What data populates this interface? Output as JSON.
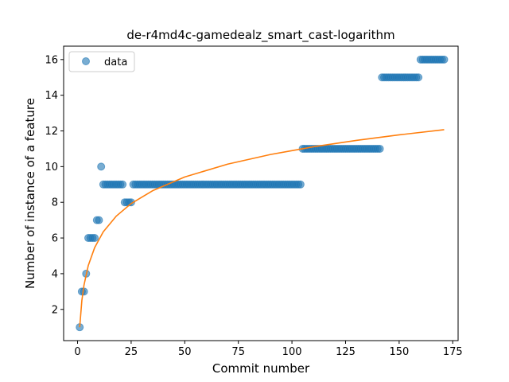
{
  "chart_data": {
    "type": "scatter",
    "title": "de-r4md4c-gamedealz_smart_cast-logarithm",
    "xlabel": "Commit number",
    "ylabel": "Number of instance of a feature",
    "xlim": [
      -6.5,
      177.5
    ],
    "ylim": [
      0.25,
      16.75
    ],
    "xticks": [
      0,
      25,
      50,
      75,
      100,
      125,
      150,
      175
    ],
    "yticks": [
      2,
      4,
      6,
      8,
      10,
      12,
      14,
      16
    ],
    "grid": false,
    "legend_position": "top-left",
    "series": [
      {
        "name": "data",
        "kind": "scatter",
        "color": "#1f77b4",
        "segments": [
          {
            "x_start": 1,
            "x_end": 1,
            "y": 1
          },
          {
            "x_start": 2,
            "x_end": 3,
            "y": 3
          },
          {
            "x_start": 4,
            "x_end": 4,
            "y": 4
          },
          {
            "x_start": 5,
            "x_end": 8,
            "y": 6
          },
          {
            "x_start": 9,
            "x_end": 10,
            "y": 7
          },
          {
            "x_start": 11,
            "x_end": 11,
            "y": 10
          },
          {
            "x_start": 12,
            "x_end": 21,
            "y": 9
          },
          {
            "x_start": 22,
            "x_end": 25,
            "y": 8
          },
          {
            "x_start": 26,
            "x_end": 104,
            "y": 9
          },
          {
            "x_start": 105,
            "x_end": 141,
            "y": 11
          },
          {
            "x_start": 142,
            "x_end": 159,
            "y": 15
          },
          {
            "x_start": 160,
            "x_end": 171,
            "y": 16
          }
        ]
      },
      {
        "name": "",
        "kind": "line",
        "color": "#ff7f0e",
        "x": [
          1,
          2,
          3,
          5,
          8,
          12,
          18,
          25,
          35,
          50,
          70,
          90,
          110,
          130,
          150,
          171
        ],
        "y": [
          1.0,
          2.49,
          3.36,
          4.46,
          5.47,
          6.35,
          7.22,
          7.93,
          8.65,
          9.42,
          10.14,
          10.68,
          11.11,
          11.47,
          11.78,
          12.07
        ]
      }
    ]
  }
}
